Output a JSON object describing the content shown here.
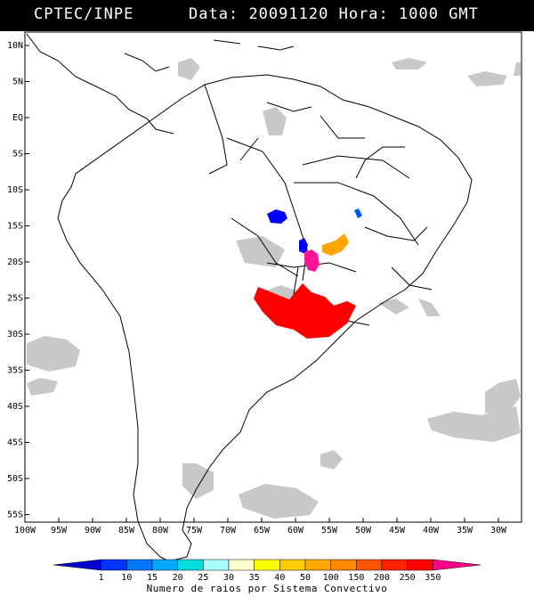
{
  "header": {
    "source": "CPTEC/INPE",
    "date_label": "Data:",
    "date_value": "20091120",
    "hour_label": "Hora:",
    "hour_value": "1000 GMT"
  },
  "axes": {
    "lat_labels": [
      "10N",
      "5N",
      "EQ",
      "5S",
      "10S",
      "15S",
      "20S",
      "25S",
      "30S",
      "35S",
      "40S",
      "45S",
      "50S",
      "55S"
    ],
    "lon_labels": [
      "100W",
      "95W",
      "90W",
      "85W",
      "80W",
      "75W",
      "70W",
      "65W",
      "60W",
      "55W",
      "50W",
      "45W",
      "40W",
      "35W",
      "30W"
    ]
  },
  "legend": {
    "title": "Numero de raios por Sistema Convectivo",
    "values": [
      "1",
      "10",
      "15",
      "20",
      "25",
      "30",
      "35",
      "40",
      "50",
      "100",
      "150",
      "200",
      "250",
      "350"
    ],
    "colors": [
      "#0000cc",
      "#0033ff",
      "#0077ff",
      "#00aaff",
      "#00dddd",
      "#aaffff",
      "#ffffcc",
      "#ffff00",
      "#ffcc00",
      "#ffaa00",
      "#ff8800",
      "#ff5500",
      "#ff2200",
      "#ff0000",
      "#ff0088"
    ]
  },
  "map_layers": {
    "cloud_color": "#c8c8c8",
    "border_color": "#000000",
    "systems": [
      {
        "color": "#0000ff",
        "name": "blue-system"
      },
      {
        "color": "#ff1493",
        "name": "magenta-system"
      },
      {
        "color": "#ffa500",
        "name": "orange-system"
      },
      {
        "color": "#ff0000",
        "name": "red-system"
      }
    ]
  }
}
